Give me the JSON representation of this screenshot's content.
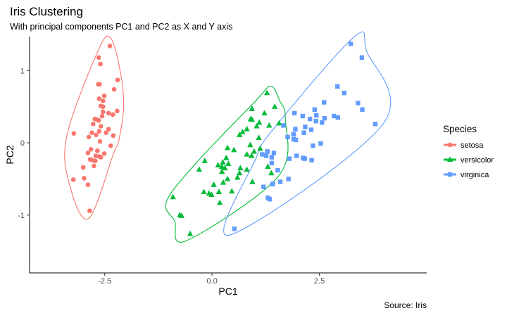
{
  "chart_data": {
    "type": "scatter",
    "title": "Iris Clustering",
    "subtitle": "With principal components PC1 and PC2 as X and Y axis",
    "xlabel": "PC1",
    "ylabel": "PC2",
    "caption": "Source: Iris",
    "xlim": [
      -4.25,
      5.0
    ],
    "ylim": [
      -1.8,
      1.47
    ],
    "x_ticks": [
      {
        "value": -2.5,
        "label": "-2.5"
      },
      {
        "value": 0.0,
        "label": "0.0"
      },
      {
        "value": 2.5,
        "label": "2.5"
      }
    ],
    "y_ticks": [
      {
        "value": 1,
        "label": "1"
      },
      {
        "value": 0,
        "label": "0"
      },
      {
        "value": -1,
        "label": "-1"
      }
    ],
    "grid": false,
    "legend": {
      "title": "Species",
      "position": "right"
    },
    "series": [
      {
        "name": "setosa",
        "color": "#F8766D",
        "marker": "circle",
        "points": [
          [
            -2.68,
            0.32
          ],
          [
            -2.71,
            -0.18
          ],
          [
            -2.89,
            -0.14
          ],
          [
            -2.75,
            -0.32
          ],
          [
            -2.73,
            0.33
          ],
          [
            -2.28,
            0.74
          ],
          [
            -2.82,
            -0.09
          ],
          [
            -2.63,
            0.16
          ],
          [
            -2.89,
            -0.58
          ],
          [
            -2.67,
            -0.11
          ],
          [
            -2.51,
            0.65
          ],
          [
            -2.61,
            0.02
          ],
          [
            -2.79,
            -0.24
          ],
          [
            -3.23,
            -0.51
          ],
          [
            -2.64,
            1.18
          ],
          [
            -2.38,
            1.34
          ],
          [
            -2.62,
            0.81
          ],
          [
            -2.65,
            0.31
          ],
          [
            -2.2,
            0.87
          ],
          [
            -2.59,
            0.51
          ],
          [
            -2.31,
            0.39
          ],
          [
            -2.54,
            0.43
          ],
          [
            -3.22,
            0.13
          ],
          [
            -2.3,
            0.1
          ],
          [
            -2.36,
            -0.04
          ],
          [
            -2.51,
            -0.15
          ],
          [
            -2.47,
            0.14
          ],
          [
            -2.56,
            0.37
          ],
          [
            -2.64,
            0.31
          ],
          [
            -2.63,
            -0.19
          ],
          [
            -2.59,
            -0.2
          ],
          [
            -2.41,
            0.41
          ],
          [
            -2.65,
            0.81
          ],
          [
            -2.6,
            1.09
          ],
          [
            -2.67,
            -0.11
          ],
          [
            -2.87,
            0.08
          ],
          [
            -2.63,
            0.61
          ],
          [
            -2.8,
            0.14
          ],
          [
            -2.98,
            -0.49
          ],
          [
            -2.59,
            0.23
          ],
          [
            -2.77,
            0.26
          ],
          [
            -2.85,
            -0.94
          ],
          [
            -3,
            -0.34
          ],
          [
            -2.41,
            0.19
          ],
          [
            -2.21,
            0.44
          ],
          [
            -2.72,
            -0.25
          ],
          [
            -2.54,
            0.5
          ],
          [
            -2.84,
            -0.23
          ],
          [
            -2.54,
            0.58
          ],
          [
            -2.7,
            0.11
          ]
        ]
      },
      {
        "name": "versicolor",
        "color": "#00BA38",
        "marker": "triangle",
        "points": [
          [
            1.28,
            0.69
          ],
          [
            0.93,
            0.32
          ],
          [
            1.46,
            0.5
          ],
          [
            0.18,
            -0.83
          ],
          [
            1.09,
            0.07
          ],
          [
            0.64,
            -0.42
          ],
          [
            1.1,
            0.28
          ],
          [
            -0.75,
            -1
          ],
          [
            1.04,
            0.23
          ],
          [
            -0.01,
            -0.72
          ],
          [
            -0.51,
            -1.26
          ],
          [
            0.51,
            -0.1
          ],
          [
            0.26,
            -0.55
          ],
          [
            0.98,
            -0.12
          ],
          [
            -0.17,
            -0.25
          ],
          [
            0.93,
            0.47
          ],
          [
            0.66,
            -0.35
          ],
          [
            0.23,
            -0.33
          ],
          [
            0.94,
            -0.54
          ],
          [
            0.04,
            -0.58
          ],
          [
            1.12,
            -0.08
          ],
          [
            0.36,
            -0.07
          ],
          [
            1.3,
            -0.33
          ],
          [
            0.92,
            -0.18
          ],
          [
            0.71,
            0.15
          ],
          [
            0.9,
            0.33
          ],
          [
            1.33,
            0.24
          ],
          [
            1.56,
            0.27
          ],
          [
            0.81,
            -0.16
          ],
          [
            -0.3,
            -0.37
          ],
          [
            -0.07,
            -0.7
          ],
          [
            -0.19,
            -0.68
          ],
          [
            0.14,
            -0.31
          ],
          [
            1.38,
            -0.42
          ],
          [
            0.59,
            -0.48
          ],
          [
            0.81,
            0.19
          ],
          [
            1.22,
            0.41
          ],
          [
            0.81,
            -0.37
          ],
          [
            0.25,
            -0.27
          ],
          [
            0.16,
            -0.68
          ],
          [
            0.46,
            -0.67
          ],
          [
            0.89,
            -0.03
          ],
          [
            0.23,
            -0.4
          ],
          [
            -0.71,
            -1.01
          ],
          [
            0.36,
            -0.5
          ],
          [
            0.33,
            -0.21
          ],
          [
            0.38,
            -0.29
          ],
          [
            0.64,
            0.11
          ],
          [
            -0.91,
            -0.75
          ],
          [
            0.3,
            -0.35
          ]
        ]
      },
      {
        "name": "virginica",
        "color": "#619CFF",
        "marker": "square",
        "points": [
          [
            2.53,
            -0.01
          ],
          [
            1.41,
            -0.57
          ],
          [
            2.62,
            0.34
          ],
          [
            1.97,
            -0.18
          ],
          [
            2.35,
            -0.04
          ],
          [
            3.4,
            0.55
          ],
          [
            0.52,
            -1.19
          ],
          [
            2.93,
            0.35
          ],
          [
            2.32,
            -0.24
          ],
          [
            2.92,
            0.78
          ],
          [
            1.66,
            0.24
          ],
          [
            1.8,
            -0.22
          ],
          [
            2.17,
            0.22
          ],
          [
            1.34,
            -0.78
          ],
          [
            1.59,
            -0.54
          ],
          [
            1.9,
            0.12
          ],
          [
            1.95,
            0.04
          ],
          [
            3.49,
            1.18
          ],
          [
            3.8,
            0.26
          ],
          [
            1.3,
            -0.76
          ],
          [
            2.43,
            0.38
          ],
          [
            1.2,
            -0.61
          ],
          [
            3.5,
            0.46
          ],
          [
            1.39,
            -0.2
          ],
          [
            2.28,
            0.33
          ],
          [
            2.61,
            0.56
          ],
          [
            1.26,
            -0.18
          ],
          [
            1.29,
            -0.12
          ],
          [
            2.12,
            -0.21
          ],
          [
            2.39,
            0.46
          ],
          [
            2.84,
            0.37
          ],
          [
            3.23,
            1.37
          ],
          [
            2.16,
            -0.22
          ],
          [
            1.44,
            -0.14
          ],
          [
            1.78,
            -0.5
          ],
          [
            3.08,
            0.69
          ],
          [
            2.14,
            0.14
          ],
          [
            1.9,
            0.05
          ],
          [
            1.17,
            -0.16
          ],
          [
            2.11,
            0.37
          ],
          [
            2.31,
            0.18
          ],
          [
            1.92,
            0.41
          ],
          [
            1.41,
            -0.57
          ],
          [
            2.56,
            0.28
          ],
          [
            2.42,
            0.3
          ],
          [
            1.94,
            0.19
          ],
          [
            1.53,
            -0.38
          ],
          [
            1.76,
            0.08
          ],
          [
            1.9,
            0.12
          ],
          [
            1.39,
            -0.28
          ]
        ]
      }
    ],
    "ellipses": [
      {
        "series": "setosa",
        "type": "convex"
      },
      {
        "series": "versicolor",
        "type": "convex"
      },
      {
        "series": "virginica",
        "type": "convex"
      }
    ]
  }
}
